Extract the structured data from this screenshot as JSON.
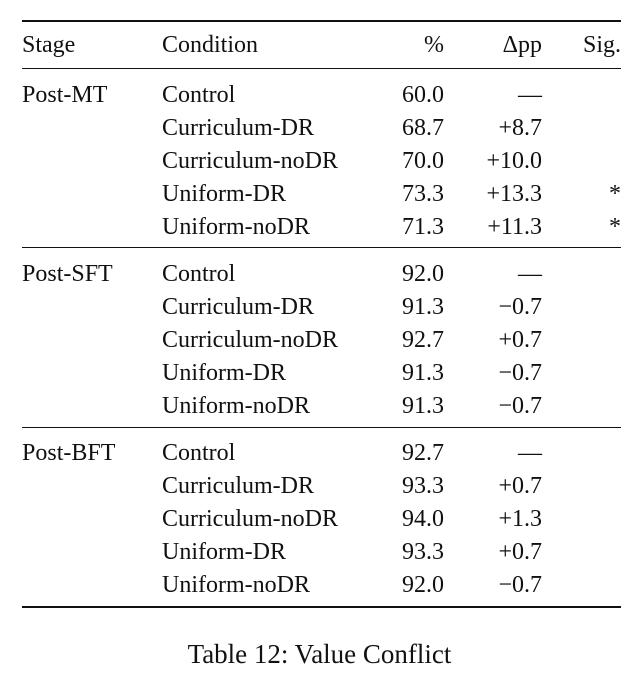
{
  "table": {
    "headers": {
      "stage": "Stage",
      "condition": "Condition",
      "percent": "%",
      "delta": "Δpp",
      "sig": "Sig."
    },
    "groups": [
      {
        "stage": "Post-MT",
        "rows": [
          {
            "condition": "Control",
            "percent": "60.0",
            "delta": "—",
            "sig": ""
          },
          {
            "condition": "Curriculum-DR",
            "percent": "68.7",
            "delta": "+8.7",
            "sig": ""
          },
          {
            "condition": "Curriculum-noDR",
            "percent": "70.0",
            "delta": "+10.0",
            "sig": ""
          },
          {
            "condition": "Uniform-DR",
            "percent": "73.3",
            "delta": "+13.3",
            "sig": "*"
          },
          {
            "condition": "Uniform-noDR",
            "percent": "71.3",
            "delta": "+11.3",
            "sig": "*"
          }
        ]
      },
      {
        "stage": "Post-SFT",
        "rows": [
          {
            "condition": "Control",
            "percent": "92.0",
            "delta": "—",
            "sig": ""
          },
          {
            "condition": "Curriculum-DR",
            "percent": "91.3",
            "delta": "−0.7",
            "sig": ""
          },
          {
            "condition": "Curriculum-noDR",
            "percent": "92.7",
            "delta": "+0.7",
            "sig": ""
          },
          {
            "condition": "Uniform-DR",
            "percent": "91.3",
            "delta": "−0.7",
            "sig": ""
          },
          {
            "condition": "Uniform-noDR",
            "percent": "91.3",
            "delta": "−0.7",
            "sig": ""
          }
        ]
      },
      {
        "stage": "Post-BFT",
        "rows": [
          {
            "condition": "Control",
            "percent": "92.7",
            "delta": "—",
            "sig": ""
          },
          {
            "condition": "Curriculum-DR",
            "percent": "93.3",
            "delta": "+0.7",
            "sig": ""
          },
          {
            "condition": "Curriculum-noDR",
            "percent": "94.0",
            "delta": "+1.3",
            "sig": ""
          },
          {
            "condition": "Uniform-DR",
            "percent": "93.3",
            "delta": "+0.7",
            "sig": ""
          },
          {
            "condition": "Uniform-noDR",
            "percent": "92.0",
            "delta": "−0.7",
            "sig": ""
          }
        ]
      }
    ]
  },
  "caption": "Table 12: Value Conflict"
}
